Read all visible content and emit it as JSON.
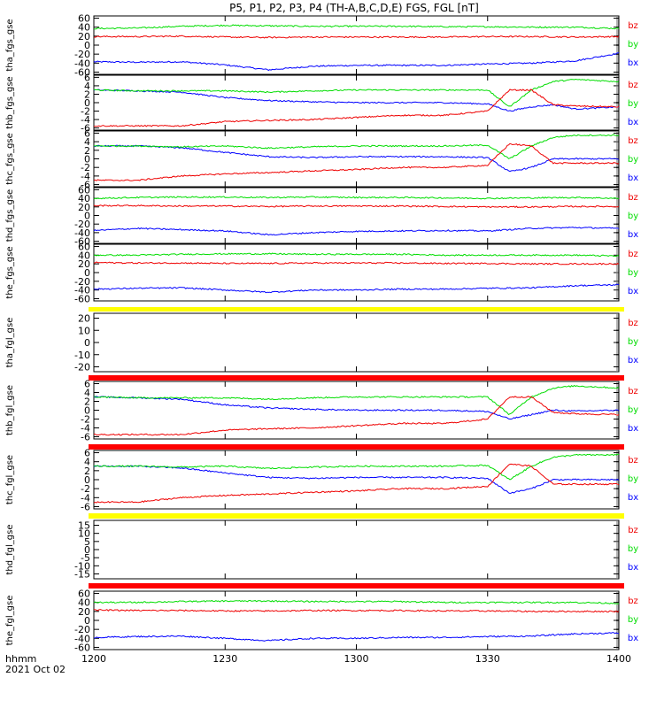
{
  "title": "P5, P1, P2, P3, P4 (TH-A,B,C,D,E) FGS, FGL [nT]",
  "x_axis": {
    "name": "hhmm",
    "date": "2021 Oct 02",
    "ticks": [
      "1200",
      "1230",
      "1300",
      "1330",
      "1400"
    ]
  },
  "colors": {
    "bx": "#0000ff",
    "by": "#00dd00",
    "bz": "#ee0000",
    "flag_yellow": "#ffff00",
    "flag_red": "#ff0000"
  },
  "chart_data": [
    {
      "type": "line",
      "ylabel": "tha_fgs_gse",
      "ylim": [
        -65,
        65
      ],
      "yticks": [
        "60",
        "40",
        "20",
        "0",
        "-20",
        "-40",
        "-60"
      ],
      "legend": [
        "bz",
        "by",
        "bx"
      ],
      "x": [
        "12:00",
        "12:10",
        "12:20",
        "12:30",
        "12:40",
        "12:50",
        "13:00",
        "13:10",
        "13:20",
        "13:30",
        "13:40",
        "13:50",
        "14:00"
      ],
      "series": [
        {
          "name": "bx",
          "values": [
            -37,
            -38,
            -37,
            -44,
            -55,
            -47,
            -45,
            -45,
            -45,
            -42,
            -40,
            -35,
            -18
          ]
        },
        {
          "name": "by",
          "values": [
            37,
            38,
            42,
            44,
            43,
            42,
            42,
            42,
            41,
            41,
            40,
            40,
            37
          ]
        },
        {
          "name": "bz",
          "values": [
            19,
            19,
            20,
            18,
            17,
            18,
            18,
            18,
            18,
            19,
            19,
            18,
            19
          ]
        }
      ]
    },
    {
      "type": "line",
      "ylabel": "thb_fgs_gse",
      "ylim": [
        -6.5,
        6.5
      ],
      "yticks": [
        "6",
        "4",
        "2",
        "0",
        "-2",
        "-4",
        "-6"
      ],
      "legend": [
        "bz",
        "by",
        "bx"
      ],
      "x": [
        "12:00",
        "12:10",
        "12:20",
        "12:30",
        "12:40",
        "12:50",
        "13:00",
        "13:10",
        "13:20",
        "13:30",
        "13:35",
        "13:40",
        "13:45",
        "13:50",
        "14:00"
      ],
      "series": [
        {
          "name": "bx",
          "values": [
            3,
            2.8,
            2.5,
            1.2,
            0.5,
            0.2,
            0,
            0,
            0,
            -0.3,
            -2,
            -1,
            -0.5,
            -1.5,
            -1
          ]
        },
        {
          "name": "by",
          "values": [
            3,
            2.8,
            2.8,
            2.8,
            2.5,
            2.8,
            3,
            3,
            3,
            3,
            -1,
            3,
            5,
            5.5,
            5
          ]
        },
        {
          "name": "bz",
          "values": [
            -5.5,
            -5.5,
            -5.5,
            -4.5,
            -4.2,
            -4,
            -3.5,
            -3,
            -3,
            -2,
            3,
            3,
            -0.5,
            -0.8,
            -1
          ]
        }
      ]
    },
    {
      "type": "line",
      "ylabel": "thc_fgs_gse",
      "ylim": [
        -6.5,
        6.5
      ],
      "yticks": [
        "6",
        "4",
        "2",
        "0",
        "-2",
        "-4",
        "-6"
      ],
      "legend": [
        "bz",
        "by",
        "bx"
      ],
      "x": [
        "12:00",
        "12:10",
        "12:20",
        "12:30",
        "12:40",
        "12:50",
        "13:00",
        "13:10",
        "13:20",
        "13:30",
        "13:35",
        "13:40",
        "13:45",
        "13:50",
        "14:00"
      ],
      "series": [
        {
          "name": "bx",
          "values": [
            3,
            3,
            2.6,
            1.5,
            0.5,
            0.3,
            0.5,
            0.5,
            0.5,
            0.3,
            -3,
            -2,
            0,
            0,
            0
          ]
        },
        {
          "name": "by",
          "values": [
            3,
            3,
            2.8,
            3,
            2.5,
            2.8,
            3,
            3,
            3,
            3.2,
            0,
            3,
            5,
            5.5,
            5.5
          ]
        },
        {
          "name": "bz",
          "values": [
            -5,
            -5,
            -4,
            -3.5,
            -3.2,
            -2.8,
            -2.5,
            -2,
            -2,
            -1.5,
            3.5,
            3,
            -1,
            -1,
            -1
          ]
        }
      ]
    },
    {
      "type": "line",
      "ylabel": "thd_fgs_gse",
      "ylim": [
        -65,
        65
      ],
      "yticks": [
        "60",
        "40",
        "20",
        "0",
        "-20",
        "-40",
        "-60"
      ],
      "legend": [
        "bz",
        "by",
        "bx"
      ],
      "x": [
        "12:00",
        "12:10",
        "12:20",
        "12:30",
        "12:40",
        "12:50",
        "13:00",
        "13:10",
        "13:20",
        "13:30",
        "13:40",
        "13:50",
        "14:00"
      ],
      "series": [
        {
          "name": "bx",
          "values": [
            -35,
            -30,
            -33,
            -36,
            -45,
            -40,
            -37,
            -36,
            -35,
            -36,
            -30,
            -28,
            -30
          ]
        },
        {
          "name": "by",
          "values": [
            40,
            42,
            43,
            43,
            42,
            43,
            42,
            42,
            41,
            40,
            41,
            42,
            40
          ]
        },
        {
          "name": "bz",
          "values": [
            23,
            23,
            22,
            22,
            21,
            22,
            22,
            22,
            21,
            20,
            20,
            21,
            21
          ]
        }
      ]
    },
    {
      "type": "line",
      "ylabel": "the_fgs_gse",
      "ylim": [
        -65,
        65
      ],
      "yticks": [
        "60",
        "40",
        "20",
        "0",
        "-20",
        "-40",
        "-60"
      ],
      "legend": [
        "bz",
        "by",
        "bx"
      ],
      "x": [
        "12:00",
        "12:10",
        "12:20",
        "12:30",
        "12:40",
        "12:50",
        "13:00",
        "13:10",
        "13:20",
        "13:30",
        "13:40",
        "13:50",
        "14:00"
      ],
      "series": [
        {
          "name": "bx",
          "values": [
            -38,
            -36,
            -35,
            -40,
            -45,
            -40,
            -40,
            -38,
            -38,
            -36,
            -35,
            -30,
            -28
          ]
        },
        {
          "name": "by",
          "values": [
            40,
            40,
            42,
            43,
            43,
            42,
            42,
            42,
            40,
            40,
            40,
            40,
            38
          ]
        },
        {
          "name": "bz",
          "values": [
            23,
            22,
            22,
            21,
            21,
            22,
            22,
            22,
            21,
            21,
            20,
            20,
            20
          ]
        }
      ]
    },
    {
      "type": "line",
      "ylabel": "tha_fgl_gse",
      "ylim": [
        -24,
        24
      ],
      "yticks": [
        "20",
        "10",
        "0",
        "-10",
        "-20"
      ],
      "legend": [
        "bz",
        "by",
        "bx"
      ],
      "flag": "yellow",
      "x": [],
      "series": []
    },
    {
      "type": "line",
      "ylabel": "thb_fgl_gse",
      "ylim": [
        -6.5,
        6.5
      ],
      "yticks": [
        "6",
        "4",
        "2",
        "0",
        "-2",
        "-4",
        "-6"
      ],
      "legend": [
        "bz",
        "by",
        "bx"
      ],
      "flag": "red",
      "x": [
        "12:00",
        "12:10",
        "12:20",
        "12:30",
        "12:40",
        "12:50",
        "13:00",
        "13:10",
        "13:20",
        "13:30",
        "13:35",
        "13:40",
        "13:45",
        "13:50",
        "14:00"
      ],
      "series": [
        {
          "name": "bx",
          "values": [
            3,
            2.8,
            2.5,
            1.2,
            0.5,
            0.2,
            0,
            0,
            0,
            -0.3,
            -2,
            -1,
            0,
            -0.2,
            0
          ]
        },
        {
          "name": "by",
          "values": [
            3,
            2.8,
            2.8,
            2.8,
            2.5,
            2.8,
            3,
            3,
            3,
            3,
            -1,
            3,
            5,
            5.5,
            5
          ]
        },
        {
          "name": "bz",
          "values": [
            -5.5,
            -5.5,
            -5.5,
            -4.5,
            -4.2,
            -4,
            -3.5,
            -3,
            -3,
            -2,
            3,
            3,
            -0.5,
            -0.8,
            -1
          ]
        }
      ]
    },
    {
      "type": "line",
      "ylabel": "thc_fgl_gse",
      "ylim": [
        -6.5,
        6.5
      ],
      "yticks": [
        "6",
        "4",
        "2",
        "0",
        "-2",
        "-4",
        "-6"
      ],
      "legend": [
        "bz",
        "by",
        "bx"
      ],
      "flag": "red",
      "x": [
        "12:00",
        "12:10",
        "12:20",
        "12:30",
        "12:40",
        "12:50",
        "13:00",
        "13:10",
        "13:20",
        "13:30",
        "13:35",
        "13:40",
        "13:45",
        "13:50",
        "14:00"
      ],
      "series": [
        {
          "name": "bx",
          "values": [
            3,
            3,
            2.6,
            1.5,
            0.5,
            0.3,
            0.5,
            0.5,
            0.5,
            0.3,
            -3,
            -2,
            0,
            0,
            0
          ]
        },
        {
          "name": "by",
          "values": [
            3,
            3,
            2.8,
            3,
            2.5,
            2.8,
            3,
            3,
            3,
            3.2,
            0,
            3,
            5,
            5.5,
            5.5
          ]
        },
        {
          "name": "bz",
          "values": [
            -5,
            -5,
            -4,
            -3.5,
            -3.2,
            -2.8,
            -2.5,
            -2,
            -2,
            -1.5,
            3.5,
            3,
            -1,
            -1,
            -1
          ]
        }
      ]
    },
    {
      "type": "line",
      "ylabel": "thd_fgl_gse",
      "ylim": [
        -18,
        18
      ],
      "yticks": [
        "15",
        "10",
        "5",
        "0",
        "-5",
        "-10",
        "-15"
      ],
      "legend": [
        "bz",
        "by",
        "bx"
      ],
      "flag": "yellow",
      "x": [],
      "series": []
    },
    {
      "type": "line",
      "ylabel": "the_fgl_gse",
      "ylim": [
        -65,
        65
      ],
      "yticks": [
        "60",
        "40",
        "20",
        "0",
        "-20",
        "-40",
        "-60"
      ],
      "legend": [
        "bz",
        "by",
        "bx"
      ],
      "flag": "red",
      "x": [
        "12:00",
        "12:10",
        "12:20",
        "12:30",
        "12:40",
        "12:50",
        "13:00",
        "13:10",
        "13:20",
        "13:30",
        "13:40",
        "13:50",
        "14:00"
      ],
      "series": [
        {
          "name": "bx",
          "values": [
            -38,
            -36,
            -35,
            -40,
            -45,
            -40,
            -40,
            -38,
            -38,
            -36,
            -35,
            -30,
            -28
          ]
        },
        {
          "name": "by",
          "values": [
            40,
            40,
            42,
            43,
            43,
            42,
            42,
            42,
            40,
            40,
            40,
            40,
            38
          ]
        },
        {
          "name": "bz",
          "values": [
            23,
            22,
            22,
            21,
            21,
            22,
            22,
            22,
            21,
            21,
            20,
            20,
            20
          ]
        }
      ]
    }
  ]
}
